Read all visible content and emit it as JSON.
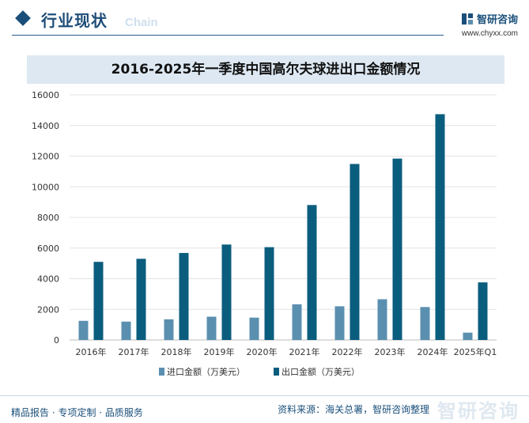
{
  "header": {
    "title": "行业现状",
    "subtitle": "Chain",
    "brand": "智研咨询",
    "url": "www.chyxx.com"
  },
  "colors": {
    "import": "#5b8fb0",
    "export": "#0b5d7e",
    "accent": "#1a4f7a"
  },
  "chart_data": {
    "type": "bar",
    "title": "2016-2025年一季度中国高尔夫球进出口金额情况",
    "categories": [
      "2016年",
      "2017年",
      "2018年",
      "2019年",
      "2020年",
      "2021年",
      "2022年",
      "2023年",
      "2024年",
      "2025年Q1"
    ],
    "series": [
      {
        "name": "进口金额（万美元）",
        "values": [
          1250,
          1200,
          1350,
          1520,
          1460,
          2330,
          2200,
          2660,
          2150,
          480
        ]
      },
      {
        "name": "出口金额（万美元）",
        "values": [
          5100,
          5300,
          5680,
          6230,
          6060,
          8810,
          11490,
          11840,
          14740,
          3760
        ]
      }
    ],
    "ylim": [
      0,
      16000
    ],
    "yticks": [
      0,
      2000,
      4000,
      6000,
      8000,
      10000,
      12000,
      14000,
      16000
    ],
    "grid": true,
    "legend": "bottom"
  },
  "footer": {
    "left": "精品报告 · 专项定制 · 品质服务",
    "source": "资料来源：海关总署，智研咨询整理",
    "watermark": "智研咨询"
  }
}
